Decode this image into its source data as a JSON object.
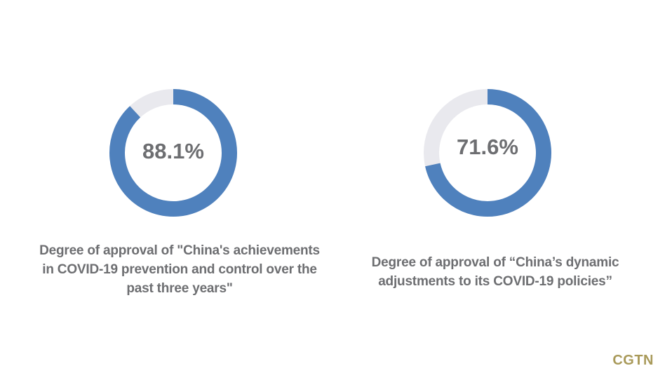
{
  "chart_data": [
    {
      "type": "donut",
      "title": "Degree of approval of \"China's achievements in COVID-19 prevention and control over the past three years\"",
      "values": [
        88.1
      ],
      "value_labels": [
        "88.1%"
      ],
      "color": "#4f81bd",
      "track_color": "#e9e9ee"
    },
    {
      "type": "donut",
      "title": "Degree of approval of “China’s dynamic adjustments to its COVID-19 policies”",
      "values": [
        71.6
      ],
      "value_labels": [
        "71.6%"
      ],
      "color": "#4f81bd",
      "track_color": "#e9e9ee"
    }
  ],
  "brand": "CGTN"
}
